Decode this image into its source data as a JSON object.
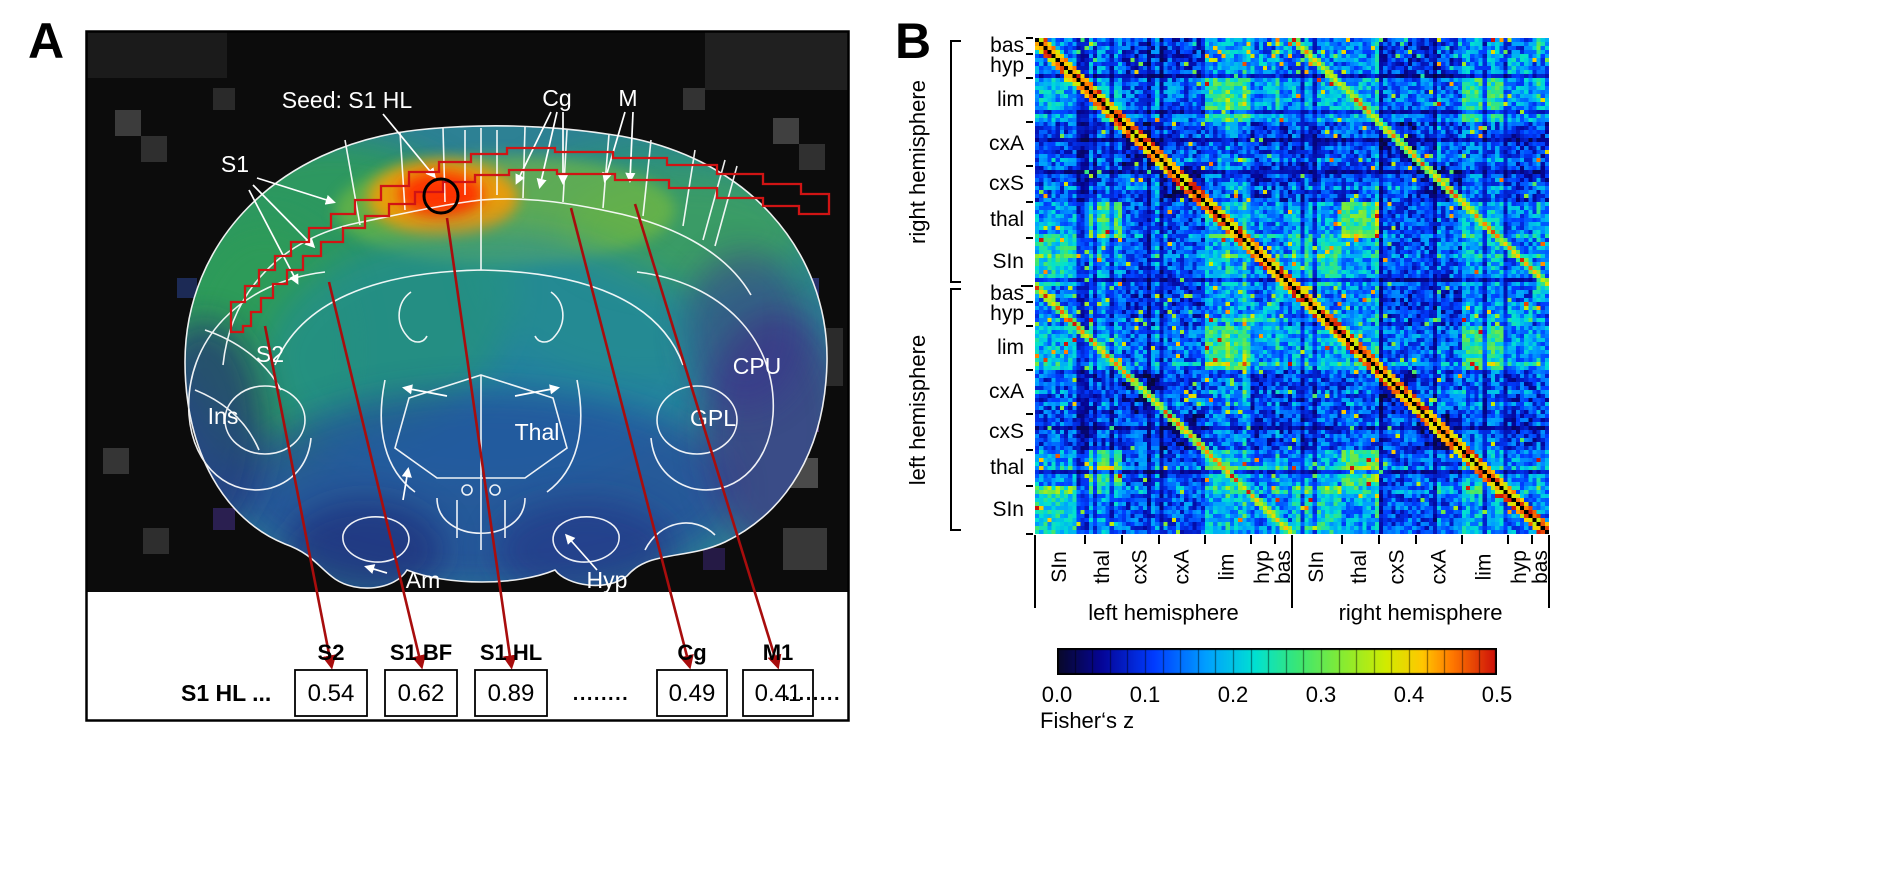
{
  "figure": {
    "panel_a_label": "A",
    "panel_b_label": "B"
  },
  "panel_a": {
    "labels": {
      "seed": "Seed: S1 HL",
      "cg": "Cg",
      "m": "M",
      "s1": "S1",
      "s2": "S2",
      "ins": "Ins",
      "cpu": "CPU",
      "gpl": "GPL",
      "thal": "Thal",
      "am": "Am",
      "hyp": "Hyp"
    },
    "table": {
      "row_label": "S1 HL ...",
      "headers": [
        "S2",
        "S1 BF",
        "S1 HL",
        "Cg",
        "M1"
      ],
      "values": [
        "0.54",
        "0.62",
        "0.89",
        "0.49",
        "0.41"
      ],
      "dots_mid": "........",
      "dots_end": "........"
    }
  },
  "chart_data": {
    "type": "heatmap",
    "rows": {
      "hemispheres": [
        {
          "label": "right hemisphere",
          "groups": [
            "bas",
            "hyp",
            "lim",
            "cxA",
            "cxS",
            "thal",
            "SIn"
          ]
        },
        {
          "label": "left hemisphere",
          "groups": [
            "bas",
            "hyp",
            "lim",
            "cxA",
            "cxS",
            "thal",
            "SIn"
          ]
        }
      ]
    },
    "cols": {
      "hemispheres": [
        {
          "label": "left hemisphere",
          "groups": [
            "SIn",
            "thal",
            "cxS",
            "cxA",
            "lim",
            "hyp",
            "bas"
          ]
        },
        {
          "label": "right hemisphere",
          "groups": [
            "SIn",
            "thal",
            "cxS",
            "cxA",
            "lim",
            "hyp",
            "bas"
          ]
        }
      ]
    },
    "group_cell_counts": {
      "bas": 4,
      "hyp": 6,
      "lim": 11,
      "cxA": 11,
      "cxS": 9,
      "thal": 9,
      "SIn": 12
    },
    "colorbar": {
      "label": "Fisher‘s z",
      "min": 0.0,
      "max": 0.5,
      "ticks": [
        "0.0",
        "0.1",
        "0.2",
        "0.3",
        "0.4",
        "0.5"
      ]
    },
    "render_seed": 42
  }
}
